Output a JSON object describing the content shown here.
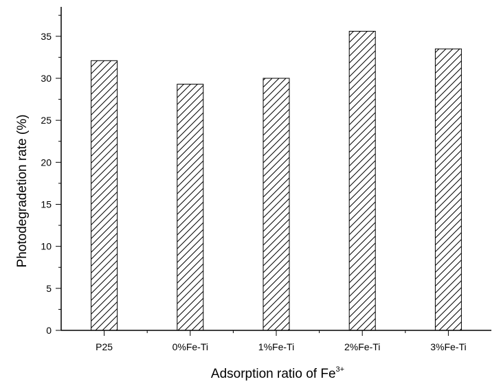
{
  "chart_data": {
    "type": "bar",
    "categories": [
      "P25",
      "0%Fe-Ti",
      "1%Fe-Ti",
      "2%Fe-Ti",
      "3%Fe-Ti"
    ],
    "values": [
      32.1,
      29.3,
      30.0,
      35.6,
      33.5
    ],
    "title": "",
    "xlabel": "Adsorption ratio of Fe",
    "xlabel_superscript": "3+",
    "ylabel": "Photodegradetion rate (%)",
    "ylim": [
      0,
      38.5
    ],
    "yticks": [
      0,
      5,
      10,
      15,
      20,
      25,
      30,
      35
    ],
    "grid": false,
    "bar_fill": "diagonal hatch",
    "colors": {
      "bar_stroke": "#000000",
      "hatch": "#000000",
      "background": "#ffffff"
    }
  }
}
